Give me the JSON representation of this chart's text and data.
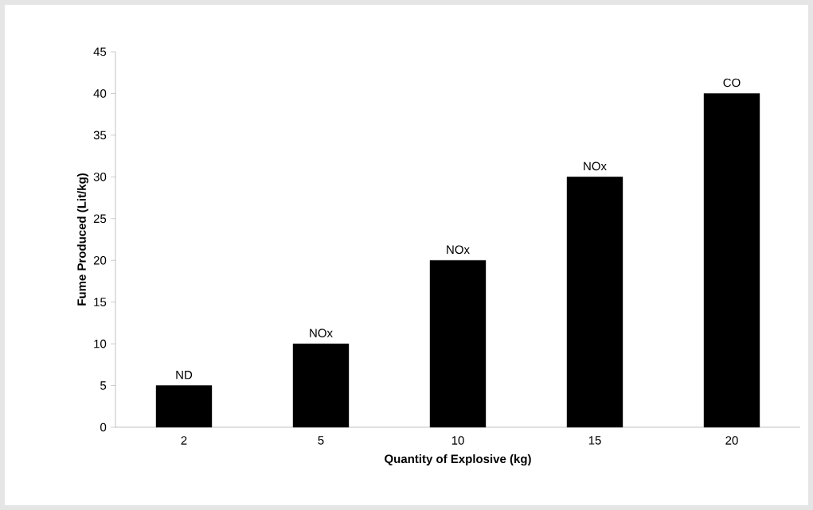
{
  "chart_data": {
    "type": "bar",
    "xlabel": "Quantity of Explosive (kg)",
    "ylabel": "Fume Produced (Lit/kg)",
    "categories": [
      "2",
      "5",
      "10",
      "15",
      "20"
    ],
    "values": [
      5,
      10,
      20,
      30,
      40
    ],
    "value_labels": [
      "ND",
      "NOx",
      "NOx",
      "NOx",
      "CO"
    ],
    "color": "#000000",
    "ylim": [
      0,
      45
    ],
    "yticks": [
      0,
      5,
      10,
      15,
      20,
      25,
      30,
      35,
      40,
      45
    ],
    "grid": false
  }
}
